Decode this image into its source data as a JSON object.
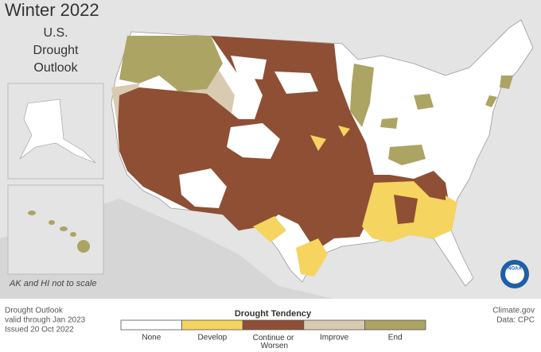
{
  "title": {
    "line1": "Winter 2022",
    "line2": "U.S.",
    "line3": "Drought",
    "line4": "Outlook"
  },
  "inset_note": "AK and HI not to scale",
  "footer": {
    "line1": "Drought Outlook",
    "line2": "valid through Jan 2023",
    "line3": "Issued 20 Oct 2022"
  },
  "legend": {
    "title": "Drought Tendency",
    "items": [
      {
        "label": "None",
        "color": "#ffffff"
      },
      {
        "label": "Develop",
        "color": "#f5d460"
      },
      {
        "label": "Continue or Worsen",
        "color": "#8e4f35"
      },
      {
        "label": "Improve",
        "color": "#d9cbb1"
      },
      {
        "label": "End",
        "color": "#aca463"
      }
    ]
  },
  "credit": {
    "line1": "Climate.gov",
    "line2": "Data: CPC"
  },
  "logo": "NOAA"
}
